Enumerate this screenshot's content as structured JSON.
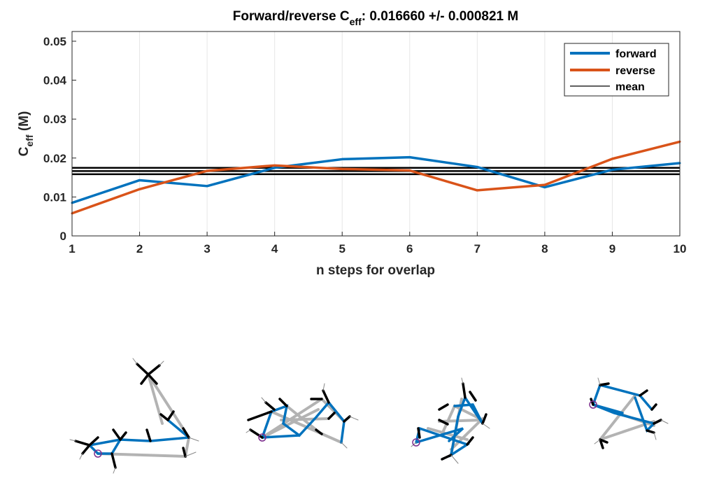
{
  "title": {
    "main": "Forward/reverse C",
    "sub": "eff",
    "rest": ": 0.016660 +/- 0.000821 M"
  },
  "xlabel": "n steps for overlap",
  "ylabel": {
    "main": "C",
    "sub": "eff",
    "rest": " (M)"
  },
  "colors": {
    "forward": "#0072BD",
    "reverse": "#D95319",
    "mean": "#000000",
    "grid": "#e6e6e6",
    "structure_gray": "#b3b3b3",
    "marker": "#7E2F8E"
  },
  "chart_data": {
    "type": "line",
    "title": "Forward/reverse Ceff: 0.016660 +/- 0.000821 M",
    "xlabel": "n steps for overlap",
    "ylabel": "Ceff (M)",
    "x": [
      1,
      2,
      3,
      4,
      5,
      6,
      7,
      8,
      9,
      10
    ],
    "xlim": [
      1,
      10
    ],
    "ylim": [
      0,
      0.0525
    ],
    "xticks": [
      "1",
      "2",
      "3",
      "4",
      "5",
      "6",
      "7",
      "8",
      "9",
      "10"
    ],
    "yticks": [
      "0",
      "0.01",
      "0.02",
      "0.03",
      "0.04",
      "0.05"
    ],
    "ytick_values": [
      0,
      0.01,
      0.02,
      0.03,
      0.04,
      0.05
    ],
    "grid": "vertical",
    "legend_position": "top-right",
    "series": [
      {
        "name": "forward",
        "values": [
          0.0085,
          0.0143,
          0.0128,
          0.0175,
          0.0197,
          0.0202,
          0.0177,
          0.0125,
          0.017,
          0.0187
        ]
      },
      {
        "name": "reverse",
        "values": [
          0.0058,
          0.012,
          0.0167,
          0.0181,
          0.0172,
          0.0168,
          0.0117,
          0.0131,
          0.0198,
          0.0242
        ]
      }
    ],
    "mean_lines": {
      "name": "mean",
      "values": [
        0.01666,
        0.015839,
        0.017481
      ]
    }
  }
}
